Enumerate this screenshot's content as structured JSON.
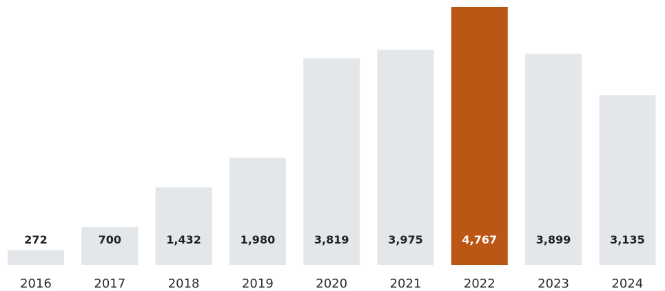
{
  "chart_data": {
    "type": "bar",
    "categories": [
      "2016",
      "2017",
      "2018",
      "2019",
      "2020",
      "2021",
      "2022",
      "2023",
      "2024"
    ],
    "values": [
      272,
      700,
      1432,
      1980,
      3819,
      3975,
      4767,
      3899,
      3135
    ],
    "value_labels": [
      "272",
      "700",
      "1,432",
      "1,980",
      "3,819",
      "3,975",
      "4,767",
      "3,899",
      "3,135"
    ],
    "highlight_category": "2022",
    "colors": {
      "bar": "#e4e7ea",
      "highlight": "#bc5614",
      "label": "#222222",
      "highlight_label": "#ffffff"
    },
    "grid": false,
    "legend": "none"
  }
}
